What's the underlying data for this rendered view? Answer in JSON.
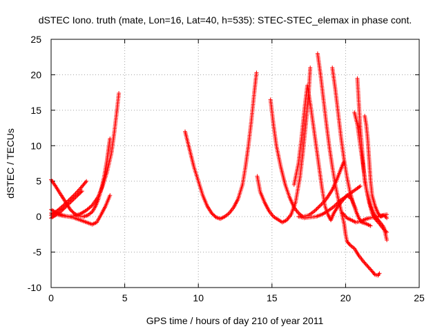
{
  "chart_data": {
    "type": "scatter",
    "title": "dSTEC Iono. truth (mate, Lon=16, Lat=40, h=535): STEC-STEC_elemax in phase cont.",
    "xlabel": "GPS time / hours of day 210 of year 2011",
    "ylabel": "dSTEC  / TECUs",
    "xlim": [
      0,
      25
    ],
    "ylim": [
      -10,
      25
    ],
    "xticks": [
      "0",
      "5",
      "10",
      "15",
      "20",
      "25"
    ],
    "yticks": [
      "-10",
      "-5",
      "0",
      "5",
      "10",
      "15",
      "20",
      "25"
    ],
    "grid": true,
    "marker": "+",
    "color": "#ff0000",
    "series": [
      {
        "points": [
          [
            0,
            5.2
          ],
          [
            0.3,
            4.3
          ],
          [
            0.6,
            3.3
          ],
          [
            1.0,
            2.0
          ],
          [
            1.3,
            1.0
          ],
          [
            1.6,
            0.4
          ],
          [
            1.9,
            0.1
          ],
          [
            2.2,
            0.0
          ],
          [
            2.5,
            0.2
          ],
          [
            2.8,
            0.7
          ],
          [
            3.0,
            1.4
          ],
          [
            3.2,
            2.4
          ],
          [
            3.4,
            3.8
          ],
          [
            3.6,
            5.6
          ],
          [
            3.8,
            8.0
          ],
          [
            3.9,
            9.5
          ],
          [
            4.0,
            11.0
          ]
        ]
      },
      {
        "points": [
          [
            0,
            1.0
          ],
          [
            0.4,
            0.5
          ],
          [
            0.8,
            0.2
          ],
          [
            1.2,
            0.0
          ],
          [
            1.6,
            0.1
          ],
          [
            2.0,
            0.4
          ],
          [
            2.4,
            0.9
          ],
          [
            2.8,
            1.6
          ],
          [
            3.2,
            2.8
          ],
          [
            3.5,
            4.3
          ],
          [
            3.8,
            6.3
          ],
          [
            4.1,
            9.0
          ],
          [
            4.3,
            12.0
          ],
          [
            4.5,
            15.5
          ],
          [
            4.6,
            17.4
          ]
        ]
      },
      {
        "points": [
          [
            0,
            0.2
          ],
          [
            0.4,
            0.8
          ],
          [
            0.8,
            1.5
          ],
          [
            1.2,
            2.3
          ],
          [
            1.6,
            3.1
          ],
          [
            2.0,
            4.0
          ],
          [
            2.4,
            5.0
          ]
        ]
      },
      {
        "points": [
          [
            0,
            -0.2
          ],
          [
            0.3,
            0.2
          ],
          [
            0.7,
            0.8
          ],
          [
            1.0,
            1.4
          ],
          [
            1.4,
            2.2
          ],
          [
            1.8,
            3.0
          ],
          [
            2.1,
            3.6
          ]
        ]
      },
      {
        "points": [
          [
            0,
            0.5
          ],
          [
            0.4,
            0.3
          ],
          [
            0.8,
            0.1
          ],
          [
            1.2,
            0.0
          ],
          [
            1.6,
            -0.2
          ],
          [
            2.0,
            -0.5
          ],
          [
            2.4,
            -0.8
          ],
          [
            2.8,
            -1.1
          ],
          [
            3.1,
            -0.8
          ],
          [
            3.4,
            0.3
          ],
          [
            3.7,
            1.5
          ],
          [
            4.0,
            3.0
          ]
        ]
      },
      {
        "points": [
          [
            9.1,
            12.0
          ],
          [
            9.4,
            9.5
          ],
          [
            9.7,
            7.0
          ],
          [
            10.0,
            5.0
          ],
          [
            10.3,
            3.0
          ],
          [
            10.6,
            1.5
          ],
          [
            10.9,
            0.5
          ],
          [
            11.2,
            -0.1
          ],
          [
            11.5,
            -0.3
          ],
          [
            11.8,
            0.0
          ],
          [
            12.1,
            0.5
          ],
          [
            12.4,
            1.3
          ],
          [
            12.7,
            2.5
          ],
          [
            13.0,
            4.5
          ],
          [
            13.2,
            7.0
          ],
          [
            13.4,
            10.0
          ],
          [
            13.6,
            13.5
          ],
          [
            13.8,
            17.5
          ],
          [
            13.95,
            20.3
          ]
        ]
      },
      {
        "points": [
          [
            14.0,
            5.7
          ],
          [
            14.2,
            3.5
          ],
          [
            14.5,
            2.0
          ],
          [
            14.8,
            0.8
          ],
          [
            15.1,
            0.0
          ],
          [
            15.4,
            -0.4
          ],
          [
            15.7,
            -0.8
          ],
          [
            16.0,
            -0.5
          ],
          [
            16.3,
            0.3
          ],
          [
            16.6,
            2.0
          ],
          [
            16.9,
            5.5
          ],
          [
            17.1,
            9.0
          ],
          [
            17.3,
            13.0
          ],
          [
            17.5,
            17.5
          ],
          [
            17.6,
            21.0
          ]
        ]
      },
      {
        "points": [
          [
            14.9,
            16.5
          ],
          [
            15.1,
            13.0
          ],
          [
            15.3,
            10.0
          ],
          [
            15.6,
            7.0
          ],
          [
            15.9,
            4.5
          ],
          [
            16.2,
            2.7
          ],
          [
            16.5,
            1.3
          ],
          [
            16.8,
            0.5
          ],
          [
            17.1,
            0.0
          ],
          [
            17.5,
            0.2
          ],
          [
            17.9,
            0.8
          ],
          [
            18.3,
            1.6
          ],
          [
            18.7,
            2.5
          ],
          [
            19.1,
            3.8
          ],
          [
            19.4,
            5.2
          ],
          [
            19.7,
            6.8
          ],
          [
            19.9,
            7.8
          ]
        ]
      },
      {
        "points": [
          [
            16.5,
            4.5
          ],
          [
            16.8,
            7.5
          ],
          [
            17.0,
            11.0
          ],
          [
            17.2,
            15.0
          ],
          [
            17.4,
            18.5
          ],
          [
            17.6,
            16.0
          ],
          [
            17.8,
            13.0
          ],
          [
            18.0,
            10.0
          ],
          [
            18.2,
            7.0
          ],
          [
            18.4,
            4.0
          ],
          [
            18.6,
            1.5
          ],
          [
            18.8,
            0.3
          ],
          [
            19.0,
            -0.5
          ],
          [
            19.2,
            0.5
          ],
          [
            19.5,
            1.5
          ],
          [
            19.8,
            2.3
          ],
          [
            20.1,
            3.0
          ],
          [
            20.4,
            2.5
          ],
          [
            20.7,
            1.0
          ]
        ]
      },
      {
        "points": [
          [
            18.1,
            23.0
          ],
          [
            18.3,
            20.0
          ],
          [
            18.5,
            16.5
          ],
          [
            18.7,
            13.0
          ],
          [
            18.9,
            9.8
          ],
          [
            19.1,
            7.0
          ],
          [
            19.3,
            4.5
          ],
          [
            19.5,
            2.5
          ],
          [
            19.7,
            0.8
          ],
          [
            19.9,
            -1.0
          ],
          [
            20.0,
            -2.5
          ],
          [
            20.1,
            -3.5
          ],
          [
            20.3,
            -4.0
          ],
          [
            20.6,
            -4.5
          ],
          [
            20.9,
            -5.5
          ],
          [
            21.2,
            -6.3
          ],
          [
            21.5,
            -7.0
          ],
          [
            21.8,
            -7.7
          ],
          [
            22.0,
            -8.2
          ],
          [
            22.2,
            -8.3
          ],
          [
            22.3,
            -8.0
          ]
        ]
      },
      {
        "points": [
          [
            19.1,
            21.0
          ],
          [
            19.3,
            18.0
          ],
          [
            19.5,
            14.5
          ],
          [
            19.7,
            11.0
          ],
          [
            19.9,
            8.0
          ],
          [
            20.1,
            5.5
          ],
          [
            20.3,
            3.5
          ],
          [
            20.5,
            2.0
          ],
          [
            20.7,
            0.8
          ],
          [
            20.9,
            -0.2
          ],
          [
            21.1,
            -0.8
          ],
          [
            21.4,
            -1.0
          ],
          [
            21.7,
            -1.3
          ]
        ]
      },
      {
        "points": [
          [
            16.8,
            0.0
          ],
          [
            17.2,
            -0.2
          ],
          [
            17.6,
            -0.1
          ],
          [
            18.0,
            0.0
          ],
          [
            18.4,
            0.3
          ],
          [
            18.8,
            0.8
          ],
          [
            19.2,
            1.4
          ],
          [
            19.6,
            2.2
          ],
          [
            20.0,
            2.8
          ],
          [
            20.4,
            3.4
          ],
          [
            20.8,
            4.0
          ],
          [
            21.0,
            4.3
          ]
        ]
      },
      {
        "points": [
          [
            20.8,
            19.5
          ],
          [
            20.9,
            16.0
          ],
          [
            21.0,
            12.5
          ],
          [
            21.1,
            10.0
          ],
          [
            21.2,
            7.5
          ],
          [
            21.3,
            5.0
          ],
          [
            21.5,
            3.0
          ],
          [
            21.7,
            1.5
          ],
          [
            21.9,
            0.5
          ],
          [
            22.1,
            -0.2
          ],
          [
            22.3,
            -0.7
          ],
          [
            22.6,
            -1.5
          ],
          [
            22.8,
            -3.3
          ]
        ]
      },
      {
        "points": [
          [
            20.6,
            14.7
          ],
          [
            20.8,
            13.0
          ],
          [
            21.0,
            10.0
          ],
          [
            21.2,
            7.0
          ],
          [
            21.4,
            4.0
          ],
          [
            21.6,
            2.0
          ],
          [
            21.8,
            0.5
          ],
          [
            22.0,
            -0.3
          ],
          [
            22.3,
            -1.0
          ],
          [
            22.6,
            -1.8
          ],
          [
            22.8,
            -2.2
          ]
        ]
      },
      {
        "points": [
          [
            21.3,
            14.2
          ],
          [
            21.4,
            13.0
          ],
          [
            21.5,
            11.0
          ],
          [
            21.6,
            8.0
          ],
          [
            21.7,
            5.0
          ],
          [
            21.8,
            3.0
          ],
          [
            22.0,
            1.5
          ],
          [
            22.2,
            0.5
          ],
          [
            22.4,
            0.0
          ],
          [
            22.6,
            0.2
          ],
          [
            22.8,
            -0.2
          ]
        ]
      },
      {
        "points": [
          [
            19.8,
            0.5
          ],
          [
            20.1,
            -0.2
          ],
          [
            20.4,
            -0.5
          ],
          [
            20.7,
            -0.8
          ],
          [
            21.0,
            -0.7
          ],
          [
            21.3,
            -0.4
          ],
          [
            21.6,
            -0.2
          ],
          [
            21.9,
            -0.1
          ],
          [
            22.2,
            0.0
          ],
          [
            22.5,
            0.2
          ],
          [
            22.8,
            0.3
          ]
        ]
      }
    ]
  }
}
